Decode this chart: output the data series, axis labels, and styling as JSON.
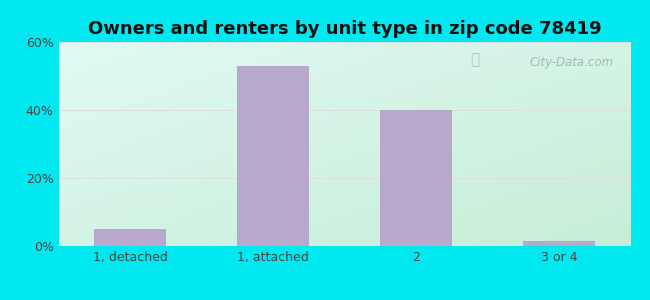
{
  "title": "Owners and renters by unit type in zip code 78419",
  "categories": [
    "1, detached",
    "1, attached",
    "2",
    "3 or 4"
  ],
  "values": [
    5,
    53,
    40,
    1.5
  ],
  "bar_color": "#b8a8cc",
  "ylim": [
    0,
    60
  ],
  "yticks": [
    0,
    20,
    40,
    60
  ],
  "ytick_labels": [
    "0%",
    "20%",
    "40%",
    "60%"
  ],
  "bg_outer": "#00e8f0",
  "watermark": "City-Data.com",
  "title_fontsize": 13,
  "tick_fontsize": 9,
  "grid_color": "#dddddd",
  "bg_corners": [
    "#c8ecd8",
    "#dff5e8",
    "#eaf8f0",
    "#f5fdf8"
  ],
  "bg_top_left": "#ceecd8",
  "bg_top_right": "#edfaf8",
  "bg_bot_left": "#c5e8d0",
  "bg_bot_right": "#e8f8f4"
}
